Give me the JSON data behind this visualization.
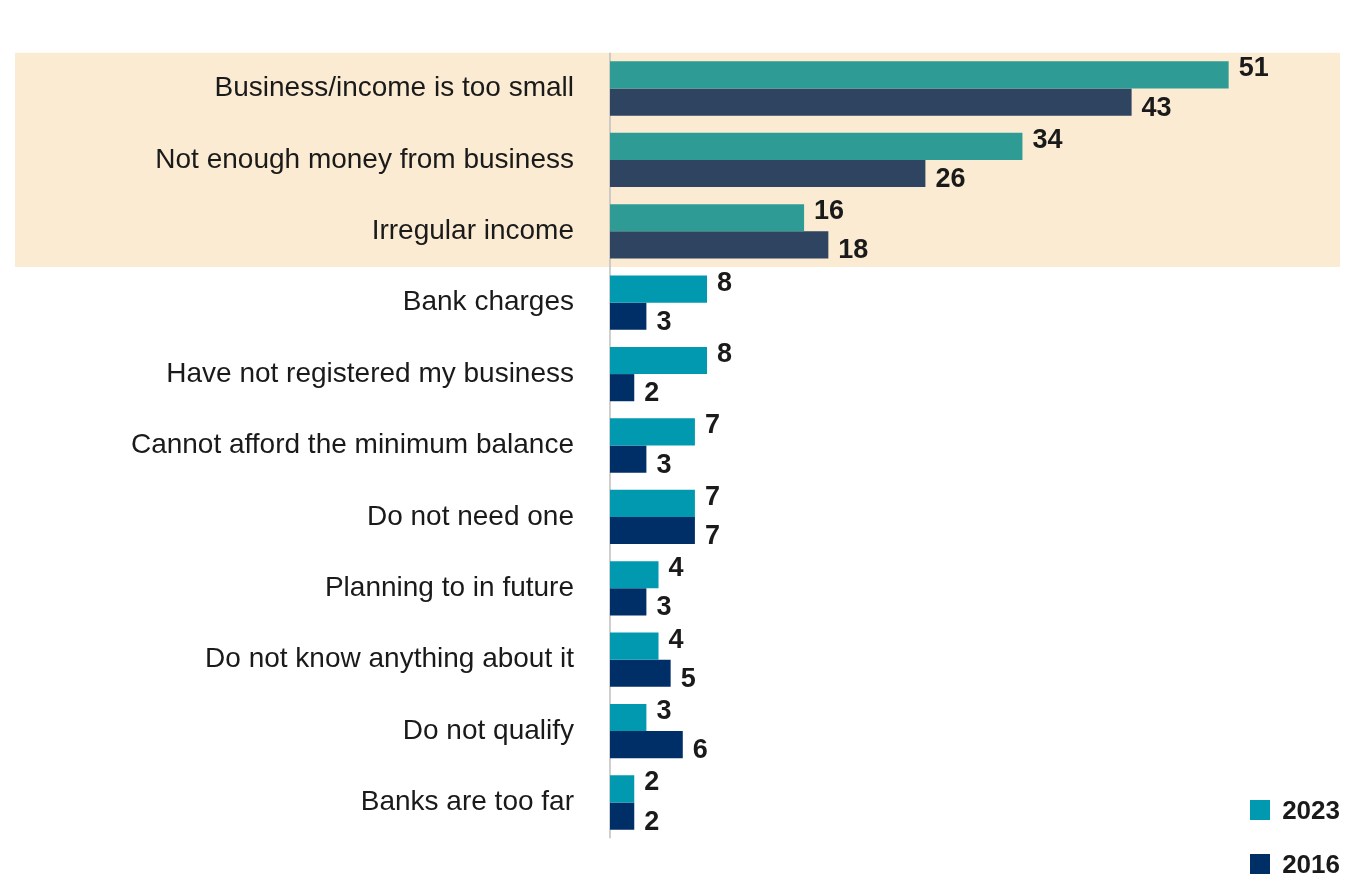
{
  "chart_data": {
    "type": "bar",
    "orientation": "horizontal",
    "categories": [
      "Business/income is too small",
      "Not enough money from business",
      "Irregular income",
      "Bank charges",
      "Have not registered my business",
      "Cannot afford the minimum balance",
      "Do not need one",
      "Planning to in future",
      "Do not know anything about it",
      "Do not qualify",
      "Banks are too far"
    ],
    "series": [
      {
        "name": "2023",
        "color": "#0099b0",
        "colors": [
          "#2e9c94",
          "#2e9c94",
          "#2e9c94",
          "#0099b0",
          "#0099b0",
          "#0099b0",
          "#0099b0",
          "#0099b0",
          "#0099b0",
          "#0099b0",
          "#0099b0"
        ],
        "values": [
          51,
          34,
          16,
          8,
          8,
          7,
          7,
          4,
          4,
          3,
          2
        ]
      },
      {
        "name": "2016",
        "color": "#002e66",
        "colors": [
          "#2e4460",
          "#2e4460",
          "#2e4460",
          "#002e66",
          "#002e66",
          "#002e66",
          "#002e66",
          "#002e66",
          "#002e66",
          "#002e66",
          "#002e66"
        ],
        "values": [
          43,
          26,
          18,
          3,
          2,
          3,
          7,
          3,
          5,
          6,
          2
        ]
      }
    ],
    "bands": [
      {
        "axis": "y",
        "from": "Business/income is too small",
        "to": "Irregular income",
        "color": "#faebd2"
      }
    ],
    "data_labels": true,
    "legend": "bottom right"
  }
}
